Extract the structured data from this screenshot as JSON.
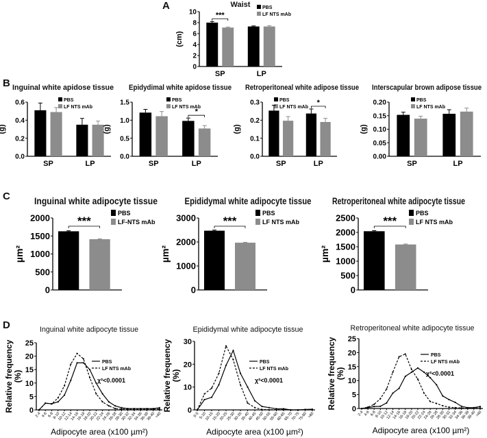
{
  "panel_labels": [
    "A",
    "B",
    "C",
    "D"
  ],
  "colors": {
    "pbs": "#000000",
    "lf": "#8c8c8c"
  },
  "chart_data": [
    {
      "id": "A",
      "type": "bar",
      "title": "Waist",
      "ylabel": "(cm)",
      "categories": [
        "SP",
        "LP"
      ],
      "ylim": [
        0,
        10
      ],
      "yticks": [
        "0",
        "2",
        "4",
        "6",
        "8",
        "10"
      ],
      "legend": [
        "PBS",
        "LF NTS mAb"
      ],
      "series": [
        {
          "name": "PBS",
          "values": [
            8.0,
            7.3
          ],
          "err": [
            0.2,
            0.1
          ]
        },
        {
          "name": "LF NTS mAb",
          "values": [
            7.1,
            7.3
          ],
          "err": [
            0.1,
            0.15
          ]
        }
      ],
      "annotations": [
        {
          "text": "***",
          "category": "SP"
        }
      ]
    },
    {
      "id": "B1",
      "type": "bar",
      "title": "Inguinal white apidose tissue",
      "ylabel": "(g)",
      "categories": [
        "SP",
        "LP"
      ],
      "ylim": [
        0,
        0.6
      ],
      "yticks": [
        "0.0",
        "0.2",
        "0.4",
        "0.6"
      ],
      "legend": [
        "PBS",
        "LF NTS mAb"
      ],
      "series": [
        {
          "name": "PBS",
          "values": [
            0.51,
            0.35
          ],
          "err": [
            0.08,
            0.07
          ]
        },
        {
          "name": "LF NTS mAb",
          "values": [
            0.49,
            0.35
          ],
          "err": [
            0.05,
            0.04
          ]
        }
      ],
      "annotations": []
    },
    {
      "id": "B2",
      "type": "bar",
      "title": "Epidydimal white apidose tissue",
      "ylabel": "(g)",
      "categories": [
        "SP",
        "LP"
      ],
      "ylim": [
        0,
        1.5
      ],
      "yticks": [
        "0.0",
        "0.5",
        "1.0",
        "1.5"
      ],
      "legend": [
        "PBS",
        "LF NTS mAb"
      ],
      "series": [
        {
          "name": "PBS",
          "values": [
            1.21,
            0.98
          ],
          "err": [
            0.09,
            0.08
          ]
        },
        {
          "name": "LF NTS mAb",
          "values": [
            1.11,
            0.77
          ],
          "err": [
            0.13,
            0.08
          ]
        }
      ],
      "annotations": [
        {
          "text": "*",
          "category": "LP"
        }
      ]
    },
    {
      "id": "B3",
      "type": "bar",
      "title": "Retroperitoneal white adipose tissue",
      "ylabel": "(g)",
      "categories": [
        "SP",
        "LP"
      ],
      "ylim": [
        0,
        0.3
      ],
      "yticks": [
        "0.0",
        "0.1",
        "0.2",
        "0.3"
      ],
      "legend": [
        "PBS",
        "LF NTS mAb"
      ],
      "series": [
        {
          "name": "PBS",
          "values": [
            0.253,
            0.237
          ],
          "err": [
            0.03,
            0.025
          ]
        },
        {
          "name": "LF NTS mAb",
          "values": [
            0.197,
            0.19
          ],
          "err": [
            0.023,
            0.02
          ]
        }
      ],
      "annotations": [
        {
          "text": "*",
          "category": "LP"
        }
      ]
    },
    {
      "id": "B4",
      "type": "bar",
      "title": "Interscapular brown adipose tissue",
      "ylabel": "(g)",
      "categories": [
        "SP",
        "LP"
      ],
      "ylim": [
        0,
        0.2
      ],
      "yticks": [
        "0.00",
        "0.05",
        "0.10",
        "0.15",
        "0.20"
      ],
      "legend": [
        "PBS",
        "LF NTS mAb"
      ],
      "series": [
        {
          "name": "PBS",
          "values": [
            0.153,
            0.157
          ],
          "err": [
            0.01,
            0.015
          ]
        },
        {
          "name": "LF NTS mAb",
          "values": [
            0.139,
            0.165
          ],
          "err": [
            0.009,
            0.013
          ]
        }
      ],
      "annotations": []
    },
    {
      "id": "C1",
      "type": "bar",
      "title": "Inguinal white adipocyte tissue",
      "ylabel": "µm²",
      "categories": [
        ""
      ],
      "ylim": [
        0,
        2000
      ],
      "yticks": [
        "0",
        "500",
        "1000",
        "1500",
        "2000"
      ],
      "legend": [
        "PBS",
        "LF-NTS mAb"
      ],
      "series": [
        {
          "name": "PBS",
          "values": [
            1630
          ],
          "err": [
            15
          ]
        },
        {
          "name": "LF-NTS mAb",
          "values": [
            1410
          ],
          "err": [
            10
          ]
        }
      ],
      "annotations": [
        {
          "text": "***",
          "category": ""
        }
      ]
    },
    {
      "id": "C2",
      "type": "bar",
      "title": "Epididymal white adipocyte tissue",
      "ylabel": "µm²",
      "categories": [
        ""
      ],
      "ylim": [
        0,
        3000
      ],
      "yticks": [
        "0",
        "1000",
        "2000",
        "3000"
      ],
      "legend": [
        "PBS",
        "LF NTS mAb"
      ],
      "series": [
        {
          "name": "PBS",
          "values": [
            2470
          ],
          "err": [
            25
          ]
        },
        {
          "name": "LF NTS mAb",
          "values": [
            1970
          ],
          "err": [
            15
          ]
        }
      ],
      "annotations": [
        {
          "text": "***",
          "category": ""
        }
      ]
    },
    {
      "id": "C3",
      "type": "bar",
      "title": "Retroperitoneal white adipocyte tissue",
      "ylabel": "µm²",
      "categories": [
        ""
      ],
      "ylim": [
        0,
        2500
      ],
      "yticks": [
        "0",
        "500",
        "1000",
        "1500",
        "2000",
        "2500"
      ],
      "legend": [
        "PBS",
        "LF NTS mAb"
      ],
      "series": [
        {
          "name": "PBS",
          "values": [
            2040
          ],
          "err": [
            20
          ]
        },
        {
          "name": "LF NTS mAb",
          "values": [
            1580
          ],
          "err": [
            15
          ]
        }
      ],
      "annotations": [
        {
          "text": "***",
          "category": ""
        }
      ]
    },
    {
      "id": "D1",
      "type": "line",
      "title": "Inguinal white adipocyte tissue",
      "ylabel": "Relative frequency (%)",
      "xlabel": "Adipocyte area (x100 µm²)",
      "ylim": [
        0,
        25
      ],
      "yticks": [
        "0",
        "5",
        "10",
        "15",
        "20",
        "25"
      ],
      "categories": [
        "2-4",
        "4-6",
        "6-8",
        "8-10",
        "10-12",
        "12-14",
        "14-16",
        "16-18",
        "18-20",
        "20-22",
        "22-24",
        "24-26",
        "26-28",
        "28-30",
        "30-32",
        "32-34",
        "34-36",
        "36-38",
        "38-40",
        ">40"
      ],
      "legend": [
        "PBS",
        "LF NTS mAb"
      ],
      "annotation": "χ²<0.0001",
      "series": [
        {
          "name": "PBS",
          "values": [
            0,
            2.5,
            2.3,
            3,
            5.5,
            11,
            17.5,
            17.5,
            15,
            10,
            6,
            3,
            1.5,
            0.8,
            0.5,
            0.5,
            0.5,
            0.5,
            0.5,
            0.8
          ]
        },
        {
          "name": "LF NTS mAb",
          "values": [
            0,
            2.5,
            2.2,
            4.5,
            9,
            17,
            21,
            19,
            12,
            6,
            3,
            1.5,
            0.5,
            0.3,
            0.3,
            0.3,
            0.3,
            0.3,
            0.3,
            0.3
          ]
        }
      ]
    },
    {
      "id": "D2",
      "type": "line",
      "title": "Epididymal white adipocyte tissue",
      "ylabel": "Relative frequency (%)",
      "xlabel": "Adipocyte area (x100 µm²)",
      "ylim": [
        0,
        30
      ],
      "yticks": [
        "0",
        "10",
        "20",
        "30"
      ],
      "categories": [
        "0-5",
        "5-10",
        "10-15",
        "15-20",
        "20-25",
        "25-30",
        "30-35",
        "35-40",
        "40-45",
        "45-50",
        "50-55",
        "55-60",
        "60-65",
        "65-70",
        "70-75",
        "75-80",
        ">80"
      ],
      "legend": [
        "PBS",
        "LF NTS mAb"
      ],
      "annotation": "χ²<0.0001",
      "series": [
        {
          "name": "PBS",
          "values": [
            0,
            4.5,
            5.5,
            11,
            19.5,
            26,
            16,
            10,
            4,
            1.5,
            1,
            0.5,
            0.5,
            0,
            0,
            0.2,
            0.3
          ]
        },
        {
          "name": "LF NTS mAb",
          "values": [
            0,
            7,
            9.5,
            16,
            28,
            22,
            11,
            3,
            1,
            0.2,
            0.1,
            0.1,
            0.1,
            0,
            0,
            0.1,
            0.1
          ]
        }
      ]
    },
    {
      "id": "D3",
      "type": "line",
      "title": "Retroperitoneal white adipocyte tissue",
      "ylabel": "Relative frequency (%)",
      "xlabel": "Adipocyte area (x100 µm²)",
      "ylim": [
        0,
        25
      ],
      "yticks": [
        "0",
        "5",
        "10",
        "15",
        "20",
        "25"
      ],
      "categories": [
        "2-4",
        "4-6",
        "6-8",
        "8-10",
        "10-12",
        "12-14",
        "14-16",
        "16-18",
        "18-20",
        "20-22",
        "22-24",
        "24-26",
        "26-28",
        "28-30",
        "30-32",
        "32-34",
        "34-36",
        "36-38",
        "38-40",
        ">40"
      ],
      "legend": [
        "PBS",
        "LF NTS mAb"
      ],
      "annotation": "χ²<0.0001",
      "series": [
        {
          "name": "PBS",
          "values": [
            0,
            0.3,
            0.7,
            0.8,
            2,
            5.5,
            7.2,
            11.5,
            13,
            14.5,
            13,
            11,
            8.5,
            4.5,
            3.2,
            2.2,
            0.8,
            0.3,
            0.3,
            0.7
          ]
        },
        {
          "name": "LF NTS mAb",
          "values": [
            0,
            0.5,
            1.5,
            3.5,
            7,
            13,
            18.5,
            19.5,
            14,
            10.5,
            5.5,
            2.5,
            1.8,
            1,
            0.5,
            0.3,
            0.2,
            0.1,
            0.1,
            0.2
          ]
        }
      ]
    }
  ]
}
